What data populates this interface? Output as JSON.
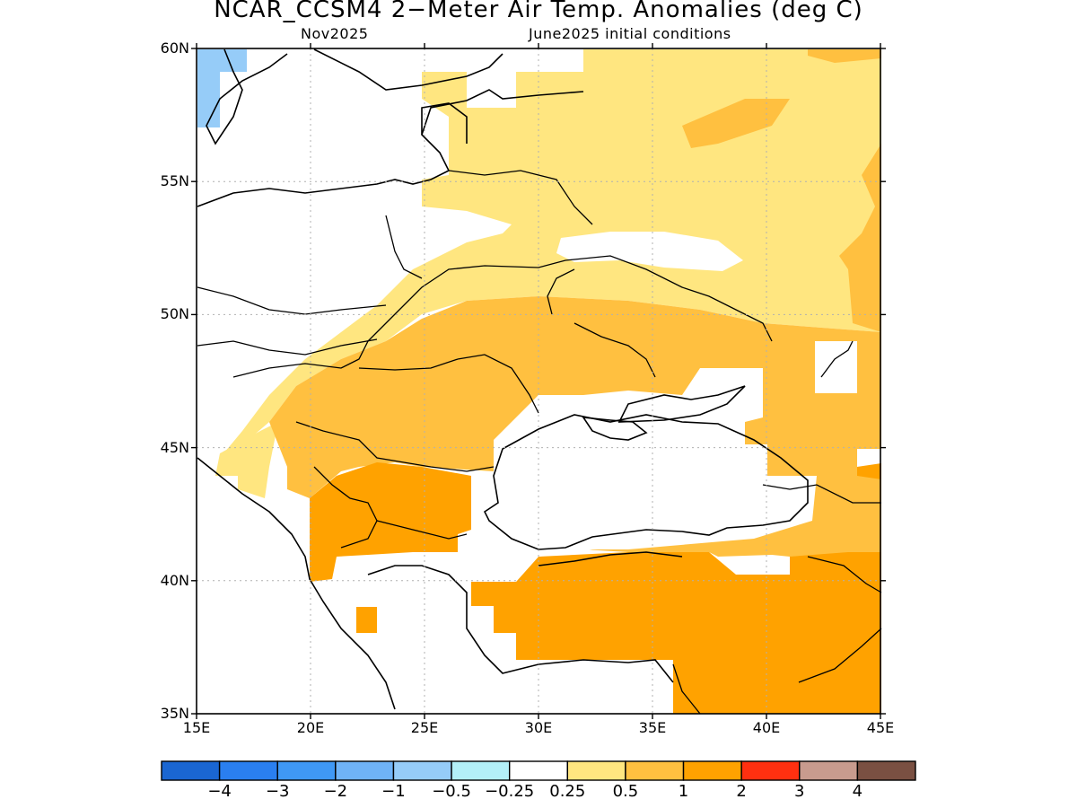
{
  "title": "NCAR_CCSM4 2−Meter Air Temp. Anomalies (deg C)",
  "subtitle_left": "Nov2025",
  "subtitle_right": "June2025 initial conditions",
  "axes": {
    "lon_ticks": [
      "15E",
      "20E",
      "25E",
      "30E",
      "35E",
      "40E",
      "45E"
    ],
    "lat_ticks": [
      "60N",
      "55N",
      "50N",
      "45N",
      "40N",
      "35N"
    ],
    "lon_range": [
      15,
      45
    ],
    "lat_range": [
      35,
      60
    ]
  },
  "colorbar": {
    "colors": [
      "#1a66d2",
      "#2a7ff0",
      "#3f98f5",
      "#6fb3f7",
      "#96ccf8",
      "#b3f0f8",
      "#ffffff",
      "#ffe680",
      "#ffc040",
      "#ffa200",
      "#ff3010",
      "#c89b8e",
      "#7a5042"
    ],
    "labels": [
      "−4",
      "−3",
      "−2",
      "−1",
      "−0.5",
      "−0.25",
      "0.25",
      "0.5",
      "1",
      "2",
      "3",
      "4"
    ]
  },
  "legend_colors": {
    "light_yellow": "#ffe680",
    "light_orange": "#ffc040",
    "orange": "#ffa200",
    "light_blue": "#96ccf8"
  }
}
